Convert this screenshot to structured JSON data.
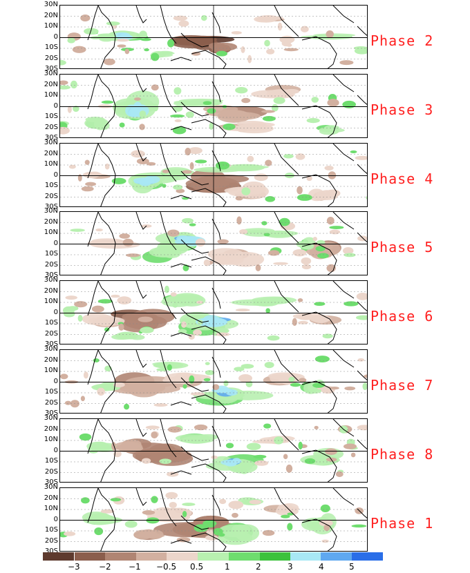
{
  "latitude_labels": [
    "30N",
    "20N",
    "10N",
    "0",
    "10S",
    "20S",
    "30S"
  ],
  "panels": [
    {
      "phase": "Phase 2"
    },
    {
      "phase": "Phase 3"
    },
    {
      "phase": "Phase 4"
    },
    {
      "phase": "Phase 5"
    },
    {
      "phase": "Phase 6"
    },
    {
      "phase": "Phase 7"
    },
    {
      "phase": "Phase 8"
    },
    {
      "phase": "Phase 1"
    }
  ],
  "colorbar": {
    "tick_labels": [
      "−3",
      "−2",
      "−1",
      "−0.5",
      "0.5",
      "1",
      "2",
      "3",
      "4",
      "5"
    ],
    "colors": [
      "#5e3a2e",
      "#8b5e4d",
      "#b08573",
      "#d2b0a0",
      "#ecd6cb",
      "#ffffff",
      "#b8f0b0",
      "#6edd6e",
      "#3cc23c",
      "#16a316",
      "#a8e8f5",
      "#5fa8f0",
      "#2a6ee8"
    ]
  }
}
